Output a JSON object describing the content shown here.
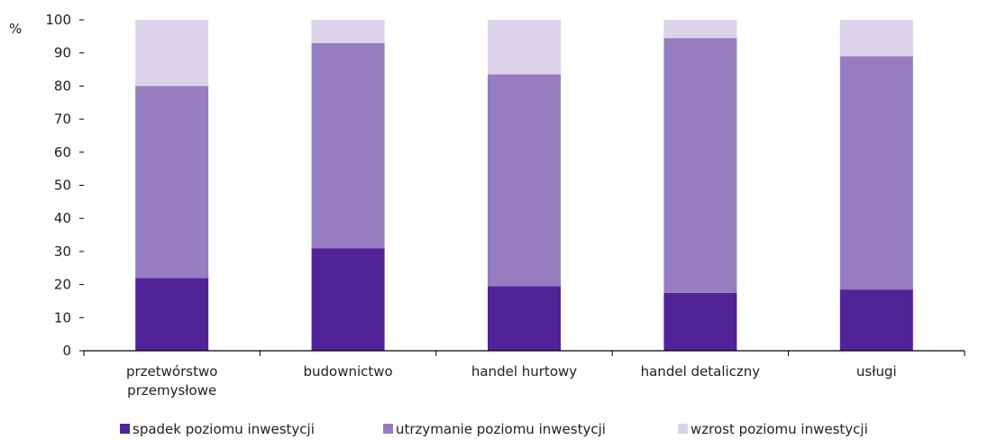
{
  "chart_data": {
    "type": "bar",
    "stacked": true,
    "unit": "%",
    "categories": [
      [
        "przetwórstwo",
        "przemysłowe"
      ],
      [
        "budownictwo"
      ],
      [
        "handel hurtowy"
      ],
      [
        "handel detaliczny"
      ],
      [
        "usługi"
      ]
    ],
    "series": [
      {
        "name": "spadek poziomu inwestycji",
        "color": "#522398",
        "values": [
          22,
          31,
          19.5,
          17.5,
          18.5
        ]
      },
      {
        "name": "utrzymanie poziomu inwestycji",
        "color": "#967DC1",
        "values": [
          58,
          62,
          64,
          77,
          70.5
        ]
      },
      {
        "name": "wzrost poziomu inwestycji",
        "color": "#DCD3EA",
        "values": [
          20,
          7,
          16.5,
          5.5,
          11
        ]
      }
    ],
    "ylim": [
      0,
      100
    ],
    "yticks": [
      0,
      10,
      20,
      30,
      40,
      50,
      60,
      70,
      80,
      90,
      100
    ],
    "grid": false,
    "legend_position": "bottom"
  }
}
